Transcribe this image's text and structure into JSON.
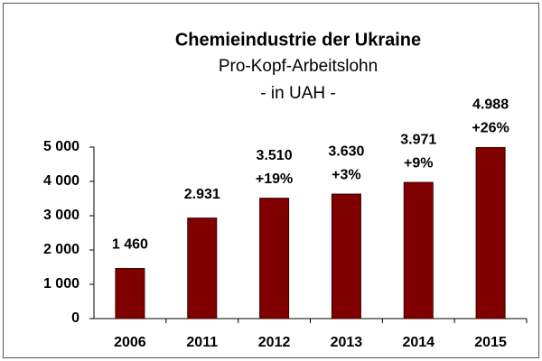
{
  "chart_data": {
    "type": "bar",
    "title": "Chemieindustrie der Ukraine",
    "subtitle": "Pro-Kopf-Arbeitslohn",
    "unit_label": "- in UAH -",
    "categories": [
      "2006",
      "2011",
      "2012",
      "2013",
      "2014",
      "2015"
    ],
    "values": [
      1460,
      2931,
      3510,
      3630,
      3971,
      4988
    ],
    "value_labels": [
      "1 460",
      "2.931",
      "3.510",
      "3.630",
      "3.971",
      "4.988"
    ],
    "change_labels": [
      null,
      null,
      "+19%",
      "+3%",
      "+9%",
      "+26%"
    ],
    "color": "#800000",
    "ylim": [
      0,
      5000
    ],
    "yticks": [
      0,
      {
        "value": 1000,
        "label": "1 000"
      },
      {
        "value": 2000,
        "label": "2 000"
      },
      {
        "value": 3000,
        "label": "3 000"
      },
      {
        "value": 4000,
        "label": "4 000"
      },
      {
        "value": 5000,
        "label": "5 000"
      }
    ],
    "grid": false
  }
}
